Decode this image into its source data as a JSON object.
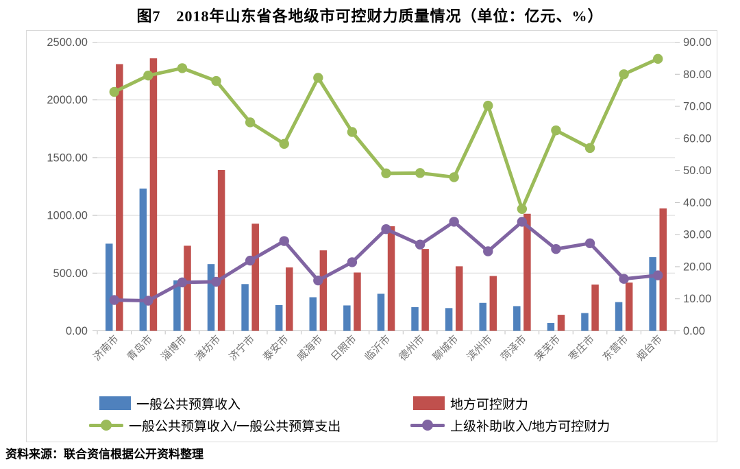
{
  "title": "图7　2018年山东省各地级市可控财力质量情况（单位：亿元、%）",
  "source_note": "资料来源：联合资信根据公开资料整理",
  "colors": {
    "bar_blue": "#4F81BD",
    "bar_red": "#C0504D",
    "line_green": "#9BBB59",
    "line_purple": "#8064A2",
    "grid": "#D9D9D9",
    "axis": "#BFBFBF",
    "tick_text": "#595959",
    "category_text": "#737373"
  },
  "chart_data": {
    "type": "combo-bar-line",
    "title": "图7　2018年山东省各地级市可控财力质量情况（单位：亿元、%）",
    "categories": [
      "济南市",
      "青岛市",
      "淄博市",
      "潍坊市",
      "济宁市",
      "泰安市",
      "威海市",
      "日照市",
      "临沂市",
      "德州市",
      "聊城市",
      "滨州市",
      "菏泽市",
      "莱芜市",
      "枣庄市",
      "东营市",
      "烟台市"
    ],
    "series": [
      {
        "key": "general-budget-revenue",
        "name": "一般公共预算收入",
        "type": "bar",
        "axis": "left",
        "color": "#4F81BD",
        "values": [
          755,
          1232,
          437,
          578,
          405,
          223,
          291,
          220,
          321,
          205,
          197,
          242,
          214,
          68,
          154,
          249,
          638
        ]
      },
      {
        "key": "local-controllable-resources",
        "name": "地方可控财力",
        "type": "bar",
        "axis": "left",
        "color": "#C0504D",
        "values": [
          2310,
          2360,
          737,
          1393,
          928,
          549,
          697,
          505,
          906,
          709,
          559,
          475,
          1014,
          139,
          401,
          418,
          1060
        ]
      },
      {
        "key": "revenue-to-expenditure-ratio",
        "name": "一般公共预算收入/一般公共预算支出",
        "type": "line",
        "axis": "right",
        "color": "#9BBB59",
        "values": [
          74.5,
          79.6,
          81.9,
          77.9,
          65.0,
          58.3,
          78.9,
          62.0,
          49.1,
          49.2,
          47.9,
          70.2,
          38.0,
          62.5,
          57.0,
          80.0,
          84.8
        ]
      },
      {
        "key": "subsidy-to-resources-ratio",
        "name": "上级补助收入/地方可控财力",
        "type": "line",
        "axis": "right",
        "color": "#8064A2",
        "values": [
          9.6,
          9.4,
          15.1,
          15.3,
          21.9,
          28.0,
          15.7,
          21.4,
          31.7,
          26.9,
          34.0,
          24.8,
          34.0,
          25.5,
          27.3,
          16.2,
          17.3
        ]
      }
    ],
    "left_axis": {
      "min": 0,
      "max": 2500,
      "step": 500,
      "tick_labels": [
        "0.00",
        "500.00",
        "1000.00",
        "1500.00",
        "2000.00",
        "2500.00"
      ]
    },
    "right_axis": {
      "min": 0,
      "max": 90,
      "step": 10,
      "tick_labels": [
        "0.00",
        "10.00",
        "20.00",
        "30.00",
        "40.00",
        "50.00",
        "60.00",
        "70.00",
        "80.00",
        "90.00"
      ]
    },
    "grid": true,
    "legend_position": "bottom"
  }
}
